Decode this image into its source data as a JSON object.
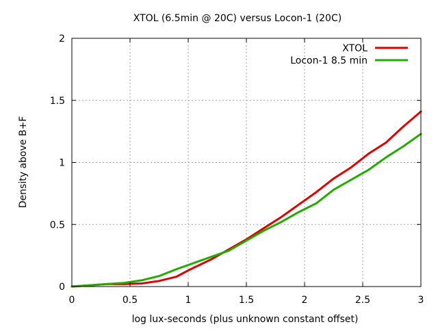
{
  "chart_data": {
    "type": "line",
    "title": "XTOL (6.5min @ 20C) versus Locon-1 (20C)",
    "xlabel": "log lux-seconds (plus unknown constant offset)",
    "ylabel": "Density above B+F",
    "xlim": [
      0,
      3
    ],
    "ylim": [
      0,
      2
    ],
    "x_ticks": [
      0,
      0.5,
      1,
      1.5,
      2,
      2.5,
      3
    ],
    "x_tick_labels": [
      "0",
      "0.5",
      "1",
      "1.5",
      "2",
      "2.5",
      "3"
    ],
    "y_ticks": [
      0,
      0.5,
      1,
      1.5,
      2
    ],
    "y_tick_labels": [
      "0",
      "0.5",
      "1",
      "1.5",
      "2"
    ],
    "grid": true,
    "legend_position": "top-right",
    "series": [
      {
        "name": "XTOL",
        "color": "#dd0000",
        "points": [
          [
            0,
            0
          ],
          [
            0.15,
            0.01
          ],
          [
            0.3,
            0.02
          ],
          [
            0.45,
            0.02
          ],
          [
            0.6,
            0.025
          ],
          [
            0.75,
            0.045
          ],
          [
            0.9,
            0.08
          ],
          [
            1.0,
            0.13
          ],
          [
            1.2,
            0.22
          ],
          [
            1.35,
            0.3
          ],
          [
            1.5,
            0.38
          ],
          [
            1.65,
            0.47
          ],
          [
            1.8,
            0.56
          ],
          [
            1.95,
            0.66
          ],
          [
            2.1,
            0.76
          ],
          [
            2.25,
            0.87
          ],
          [
            2.4,
            0.96
          ],
          [
            2.55,
            1.07
          ],
          [
            2.7,
            1.16
          ],
          [
            2.85,
            1.29
          ],
          [
            3.0,
            1.41
          ]
        ]
      },
      {
        "name": "Locon-1 8.5 min",
        "color": "#22aa00",
        "points": [
          [
            0,
            0
          ],
          [
            0.15,
            0.01
          ],
          [
            0.3,
            0.02
          ],
          [
            0.45,
            0.03
          ],
          [
            0.6,
            0.05
          ],
          [
            0.75,
            0.085
          ],
          [
            0.9,
            0.14
          ],
          [
            1.05,
            0.19
          ],
          [
            1.2,
            0.24
          ],
          [
            1.35,
            0.29
          ],
          [
            1.5,
            0.37
          ],
          [
            1.65,
            0.45
          ],
          [
            1.8,
            0.52
          ],
          [
            1.95,
            0.6
          ],
          [
            2.1,
            0.67
          ],
          [
            2.25,
            0.78
          ],
          [
            2.4,
            0.86
          ],
          [
            2.55,
            0.94
          ],
          [
            2.7,
            1.04
          ],
          [
            2.85,
            1.13
          ],
          [
            3.0,
            1.23
          ]
        ]
      }
    ]
  }
}
